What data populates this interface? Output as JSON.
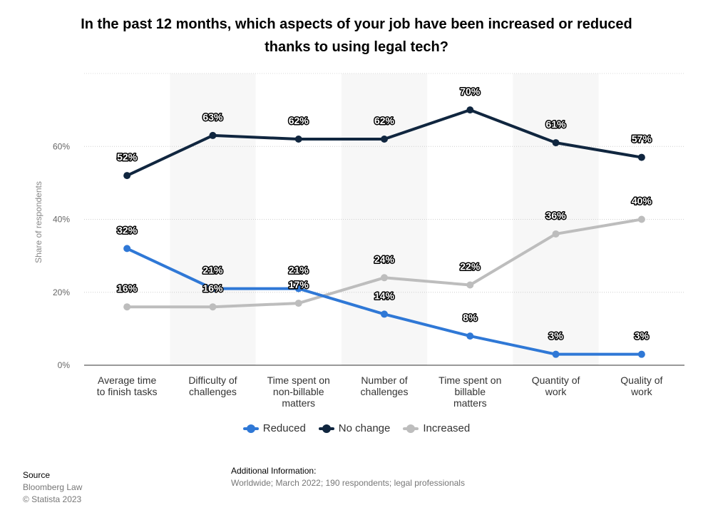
{
  "title_lines": [
    "In the past 12 months, which aspects of your job have been increased or reduced",
    "thanks to using legal tech?"
  ],
  "chart_data": {
    "type": "line",
    "title": "In the past 12 months, which aspects of your job have been increased or reduced thanks to using legal tech?",
    "ylabel": "Share of respondents",
    "xlabel": "",
    "ylim": [
      0,
      80
    ],
    "yticks": [
      {
        "value": 0,
        "label": "0%"
      },
      {
        "value": 20,
        "label": "20%"
      },
      {
        "value": 40,
        "label": "40%"
      },
      {
        "value": 60,
        "label": "60%"
      }
    ],
    "categories": [
      [
        "Average time",
        "to finish tasks"
      ],
      [
        "Difficulty of",
        "challenges"
      ],
      [
        "Time spent on",
        "non-billable",
        "matters"
      ],
      [
        "Number of",
        "challenges"
      ],
      [
        "Time spent on",
        "billable",
        "matters"
      ],
      [
        "Quantity of",
        "work"
      ],
      [
        "Quality of",
        "work"
      ]
    ],
    "series": [
      {
        "name": "Reduced",
        "color": "#2f78d6",
        "values": [
          32,
          21,
          21,
          14,
          8,
          3,
          3
        ],
        "labels": [
          "32%",
          "21%",
          "21%",
          "14%",
          "8%",
          "3%",
          "3%"
        ]
      },
      {
        "name": "No change",
        "color": "#10263f",
        "values": [
          52,
          63,
          62,
          62,
          70,
          61,
          57
        ],
        "labels": [
          "52%",
          "63%",
          "62%",
          "62%",
          "70%",
          "61%",
          "57%"
        ]
      },
      {
        "name": "Increased",
        "color": "#bdbdbd",
        "values": [
          16,
          16,
          17,
          24,
          22,
          36,
          40
        ],
        "labels": [
          "16%",
          "16%",
          "17%",
          "24%",
          "22%",
          "36%",
          "40%"
        ]
      }
    ],
    "grid": true,
    "legend": "bottom"
  },
  "source": {
    "heading": "Source",
    "lines": [
      "Bloomberg Law",
      "© Statista 2023"
    ]
  },
  "additional_info": {
    "heading": "Additional Information:",
    "text": "Worldwide; March 2022; 190 respondents; legal professionals"
  }
}
